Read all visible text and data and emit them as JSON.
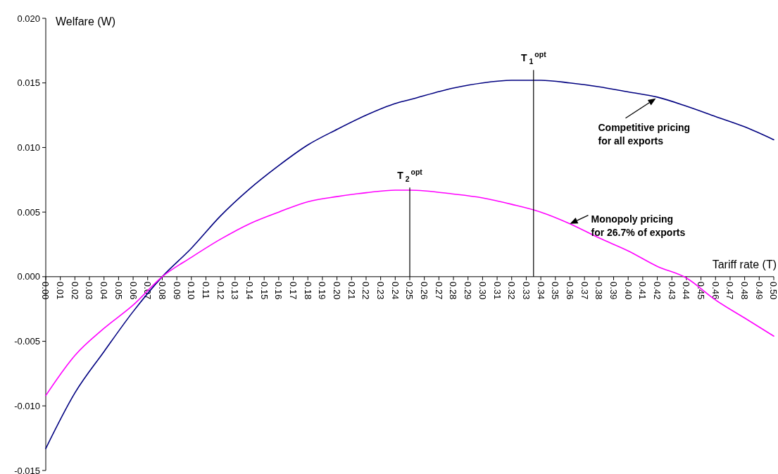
{
  "chart_data": {
    "type": "line",
    "xlabel": "Tariff rate (T)",
    "ylabel": "Welfare (W)",
    "x": [
      0,
      0.02,
      0.04,
      0.06,
      0.08,
      0.1,
      0.12,
      0.14,
      0.16,
      0.18,
      0.2,
      0.22,
      0.24,
      0.25,
      0.28,
      0.3,
      0.32,
      0.34,
      0.36,
      0.38,
      0.4,
      0.42,
      0.44,
      0.46,
      0.48,
      0.5
    ],
    "series": [
      {
        "color": "#000080",
        "values": [
          -0.0133,
          -0.009,
          -0.0058,
          -0.0027,
          0,
          0.0022,
          0.0047,
          0.0068,
          0.0086,
          0.0102,
          0.0114,
          0.0125,
          0.0134,
          0.0137,
          0.0146,
          0.015,
          0.0152,
          0.0152,
          0.015,
          0.0147,
          0.0143,
          0.0139,
          0.0132,
          0.0124,
          0.0116,
          0.0106
        ]
      },
      {
        "color": "#ff00ff",
        "values": [
          -0.0092,
          -0.0061,
          -0.004,
          -0.0022,
          0,
          0.0015,
          0.0029,
          0.0041,
          0.005,
          0.0058,
          0.0062,
          0.0065,
          0.0067,
          0.0067,
          0.0064,
          0.0061,
          0.0056,
          0.005,
          0.0041,
          0.003,
          0.002,
          0.0008,
          -0.0001,
          -0.0018,
          -0.0032,
          -0.0046
        ]
      },
      {
        "type": "bar",
        "color": "#000000",
        "x": [
          0.25,
          0.335
        ],
        "values": [
          0.0069,
          0.016
        ]
      }
    ],
    "xlim": [
      0,
      0.5
    ],
    "xticks": [
      {
        "value": 0,
        "label": "0.00"
      },
      {
        "value": 0.01,
        "label": "0.01"
      },
      {
        "value": 0.02,
        "label": "0.02"
      },
      {
        "value": 0.03,
        "label": "0.03"
      },
      {
        "value": 0.04,
        "label": "0.04"
      },
      {
        "value": 0.05,
        "label": "0.05"
      },
      {
        "value": 0.06,
        "label": "0.06"
      },
      {
        "value": 0.07,
        "label": "0.07"
      },
      {
        "value": 0.08,
        "label": "0.08"
      },
      {
        "value": 0.09,
        "label": "0.09"
      },
      {
        "value": 0.1,
        "label": "0.10"
      },
      {
        "value": 0.11,
        "label": "0.11"
      },
      {
        "value": 0.12,
        "label": "0.12"
      },
      {
        "value": 0.13,
        "label": "0.13"
      },
      {
        "value": 0.14,
        "label": "0.14"
      },
      {
        "value": 0.15,
        "label": "0.15"
      },
      {
        "value": 0.16,
        "label": "0.16"
      },
      {
        "value": 0.17,
        "label": "0.17"
      },
      {
        "value": 0.18,
        "label": "0.18"
      },
      {
        "value": 0.19,
        "label": "0.19"
      },
      {
        "value": 0.2,
        "label": "0.20"
      },
      {
        "value": 0.21,
        "label": "0.21"
      },
      {
        "value": 0.22,
        "label": "0.22"
      },
      {
        "value": 0.23,
        "label": "0.23"
      },
      {
        "value": 0.24,
        "label": "0.24"
      },
      {
        "value": 0.25,
        "label": "0.25"
      },
      {
        "value": 0.26,
        "label": "0.26"
      },
      {
        "value": 0.27,
        "label": "0.27"
      },
      {
        "value": 0.28,
        "label": "0.28"
      },
      {
        "value": 0.29,
        "label": "0.29"
      },
      {
        "value": 0.3,
        "label": "0.30"
      },
      {
        "value": 0.31,
        "label": "0.31"
      },
      {
        "value": 0.32,
        "label": "0.32"
      },
      {
        "value": 0.33,
        "label": "0.33"
      },
      {
        "value": 0.34,
        "label": "0.34"
      },
      {
        "value": 0.35,
        "label": "0.35"
      },
      {
        "value": 0.36,
        "label": "0.36"
      },
      {
        "value": 0.37,
        "label": "0.37"
      },
      {
        "value": 0.38,
        "label": "0.38"
      },
      {
        "value": 0.39,
        "label": "0.39"
      },
      {
        "value": 0.4,
        "label": "0.40"
      },
      {
        "value": 0.41,
        "label": "0.41"
      },
      {
        "value": 0.42,
        "label": "0.42"
      },
      {
        "value": 0.43,
        "label": "0.43"
      },
      {
        "value": 0.44,
        "label": "0.44"
      },
      {
        "value": 0.45,
        "label": "0.45"
      },
      {
        "value": 0.46,
        "label": "0.46"
      },
      {
        "value": 0.47,
        "label": "0.47"
      },
      {
        "value": 0.48,
        "label": "0.48"
      },
      {
        "value": 0.49,
        "label": "0.49"
      },
      {
        "value": 0.5,
        "label": "0.50"
      }
    ],
    "ylim": [
      -0.015,
      0.02
    ],
    "yticks": [
      {
        "value": -0.015,
        "label": "-0.015"
      },
      {
        "value": -0.01,
        "label": "-0.010"
      },
      {
        "value": -0.005,
        "label": "-0.005"
      },
      {
        "value": 0,
        "label": "0.000"
      },
      {
        "value": 0.005,
        "label": "0.005"
      },
      {
        "value": 0.01,
        "label": "0.010"
      },
      {
        "value": 0.015,
        "label": "0.015"
      },
      {
        "value": 0.02,
        "label": "0.020"
      }
    ],
    "annotations": [
      {
        "text": "T$_{1}$$^{opt}$",
        "x": 0.335,
        "y": 0.016
      },
      {
        "text": "T$_{2}$$^{opt}$",
        "x": 0.25,
        "y": 0.0069
      },
      {
        "text": "Competitive pricing\nfor all exports",
        "x": 0.419,
        "y": 0.0138
      },
      {
        "text": "Monopoly pricing\nfor 26.7% of exports",
        "x": 0.36,
        "y": 0.0041
      }
    ]
  }
}
